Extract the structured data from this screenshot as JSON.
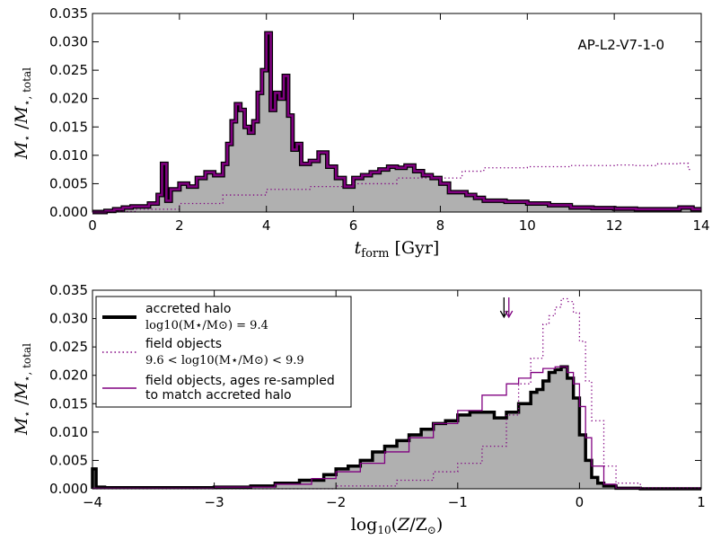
{
  "chart_data": [
    {
      "type": "area",
      "annotation": "AP-L2-V7-1-0",
      "xlabel": "t_form [Gyr]",
      "ylabel": "M⋆ / M⋆,total",
      "xlim": [
        0,
        14
      ],
      "ylim": [
        0,
        0.035
      ],
      "xticks": [
        0,
        2,
        4,
        6,
        8,
        10,
        12,
        14
      ],
      "yticks": [
        0.0,
        0.005,
        0.01,
        0.015,
        0.02,
        0.025,
        0.03,
        0.035
      ],
      "ytick_labels": [
        "0.000",
        "0.005",
        "0.010",
        "0.015",
        "0.020",
        "0.025",
        "0.030",
        "0.035"
      ],
      "series": [
        {
          "style": "filled-step",
          "x": [
            0.0,
            0.3,
            0.5,
            0.7,
            0.9,
            1.1,
            1.3,
            1.5,
            1.6,
            1.7,
            1.8,
            2.0,
            2.2,
            2.4,
            2.6,
            2.8,
            3.0,
            3.1,
            3.2,
            3.3,
            3.4,
            3.5,
            3.6,
            3.7,
            3.8,
            3.9,
            4.0,
            4.1,
            4.2,
            4.3,
            4.4,
            4.5,
            4.6,
            4.7,
            4.8,
            5.0,
            5.2,
            5.4,
            5.6,
            5.8,
            6.0,
            6.2,
            6.4,
            6.6,
            6.8,
            7.0,
            7.2,
            7.4,
            7.6,
            7.8,
            8.0,
            8.2,
            8.4,
            8.6,
            8.8,
            9.0,
            9.5,
            10.0,
            10.5,
            11.0,
            11.5,
            12.0,
            12.5,
            13.0,
            13.5,
            13.8,
            14.0
          ],
          "y": [
            0.0,
            0.0002,
            0.0005,
            0.0008,
            0.001,
            0.001,
            0.0015,
            0.003,
            0.0085,
            0.002,
            0.004,
            0.005,
            0.0045,
            0.006,
            0.007,
            0.0065,
            0.0085,
            0.012,
            0.016,
            0.019,
            0.018,
            0.015,
            0.014,
            0.016,
            0.021,
            0.025,
            0.0315,
            0.018,
            0.021,
            0.02,
            0.024,
            0.017,
            0.011,
            0.012,
            0.0085,
            0.009,
            0.0105,
            0.008,
            0.006,
            0.0045,
            0.006,
            0.0065,
            0.007,
            0.0075,
            0.008,
            0.0078,
            0.0082,
            0.0072,
            0.0065,
            0.006,
            0.005,
            0.0035,
            0.0035,
            0.003,
            0.0025,
            0.002,
            0.0018,
            0.0015,
            0.0012,
            0.0008,
            0.0007,
            0.0006,
            0.0005,
            0.0005,
            0.0008,
            0.0005,
            0.0
          ]
        },
        {
          "style": "dotted",
          "x": [
            0.0,
            0.5,
            1.0,
            2.0,
            3.0,
            4.0,
            5.0,
            6.0,
            7.0,
            8.0,
            8.5,
            9.0,
            10.0,
            11.0,
            12.0,
            12.5,
            13.0,
            13.5,
            13.7,
            13.8
          ],
          "y": [
            0.0,
            0.0001,
            0.0005,
            0.0015,
            0.003,
            0.004,
            0.0045,
            0.005,
            0.006,
            0.006,
            0.0072,
            0.0078,
            0.008,
            0.0082,
            0.0083,
            0.0082,
            0.0085,
            0.0086,
            0.0075,
            0.0
          ]
        }
      ]
    },
    {
      "type": "area",
      "xlabel": "log10(Z/Z⊙)",
      "ylabel": "M⋆ / M⋆,total",
      "xlim": [
        -4,
        1
      ],
      "ylim": [
        0,
        0.035
      ],
      "xticks": [
        -4,
        -3,
        -2,
        -1,
        0,
        1
      ],
      "xtick_labels": [
        "−4",
        "−3",
        "−2",
        "−1",
        "0",
        "1"
      ],
      "yticks": [
        0.0,
        0.005,
        0.01,
        0.015,
        0.02,
        0.025,
        0.03,
        0.035
      ],
      "ytick_labels": [
        "0.000",
        "0.005",
        "0.010",
        "0.015",
        "0.020",
        "0.025",
        "0.030",
        "0.035"
      ],
      "legend": {
        "position": "upper-left",
        "entries": [
          {
            "label": "accreted halo",
            "sub": "log10(M⋆/M⊙) = 9.4"
          },
          {
            "label": "field objects",
            "sub": "9.6 < log10(M⋆/M⊙) < 9.9"
          },
          {
            "label": "field objects, ages re-sampled",
            "sub": "to match accreted halo"
          }
        ]
      },
      "arrows": [
        {
          "x": -0.62,
          "color": "#000000"
        },
        {
          "x": -0.58,
          "color": "#800080"
        }
      ],
      "series": [
        {
          "style": "filled-step-thick",
          "x": [
            -4.0,
            -3.97,
            -3.9,
            -3.5,
            -3.0,
            -2.7,
            -2.5,
            -2.3,
            -2.1,
            -2.0,
            -1.9,
            -1.8,
            -1.7,
            -1.6,
            -1.5,
            -1.4,
            -1.3,
            -1.2,
            -1.1,
            -1.0,
            -0.9,
            -0.8,
            -0.7,
            -0.6,
            -0.5,
            -0.4,
            -0.35,
            -0.3,
            -0.25,
            -0.2,
            -0.15,
            -0.1,
            -0.05,
            0.0,
            0.05,
            0.1,
            0.15,
            0.2,
            0.3,
            0.5,
            1.0
          ],
          "y": [
            0.0035,
            0.0003,
            0.0002,
            0.0002,
            0.0003,
            0.0005,
            0.001,
            0.0015,
            0.0025,
            0.0035,
            0.004,
            0.005,
            0.0065,
            0.0075,
            0.0085,
            0.0095,
            0.0105,
            0.0115,
            0.012,
            0.013,
            0.0135,
            0.0135,
            0.0125,
            0.0135,
            0.015,
            0.017,
            0.0175,
            0.019,
            0.0205,
            0.021,
            0.0215,
            0.0195,
            0.016,
            0.0095,
            0.005,
            0.002,
            0.001,
            0.0005,
            0.0001,
            0.0,
            0.0
          ]
        },
        {
          "style": "step-solid",
          "x": [
            -4.0,
            -3.0,
            -2.5,
            -2.2,
            -2.0,
            -1.8,
            -1.6,
            -1.4,
            -1.2,
            -1.0,
            -0.8,
            -0.6,
            -0.5,
            -0.4,
            -0.3,
            -0.2,
            -0.1,
            -0.05,
            0.0,
            0.05,
            0.1,
            0.2,
            0.3,
            0.5,
            1.0
          ],
          "y": [
            0.0001,
            0.0003,
            0.0008,
            0.0018,
            0.003,
            0.0045,
            0.0065,
            0.009,
            0.0115,
            0.0138,
            0.0165,
            0.0185,
            0.0195,
            0.0205,
            0.0212,
            0.0215,
            0.0205,
            0.0185,
            0.0145,
            0.009,
            0.004,
            0.0008,
            0.0001,
            0.0,
            0.0
          ]
        },
        {
          "style": "step-dotted",
          "x": [
            -4.0,
            -2.0,
            -1.5,
            -1.2,
            -1.0,
            -0.8,
            -0.6,
            -0.5,
            -0.4,
            -0.3,
            -0.25,
            -0.2,
            -0.15,
            -0.1,
            -0.05,
            0.0,
            0.05,
            0.1,
            0.2,
            0.3,
            0.5,
            1.0
          ],
          "y": [
            0.0,
            0.0005,
            0.0015,
            0.003,
            0.0045,
            0.0075,
            0.013,
            0.0185,
            0.023,
            0.029,
            0.0305,
            0.032,
            0.0335,
            0.033,
            0.031,
            0.026,
            0.019,
            0.012,
            0.004,
            0.001,
            0.0002,
            0.0
          ]
        }
      ]
    }
  ],
  "colors": {
    "purple": "#800080",
    "fill": "#b0b0b0",
    "dark": "#000000"
  }
}
